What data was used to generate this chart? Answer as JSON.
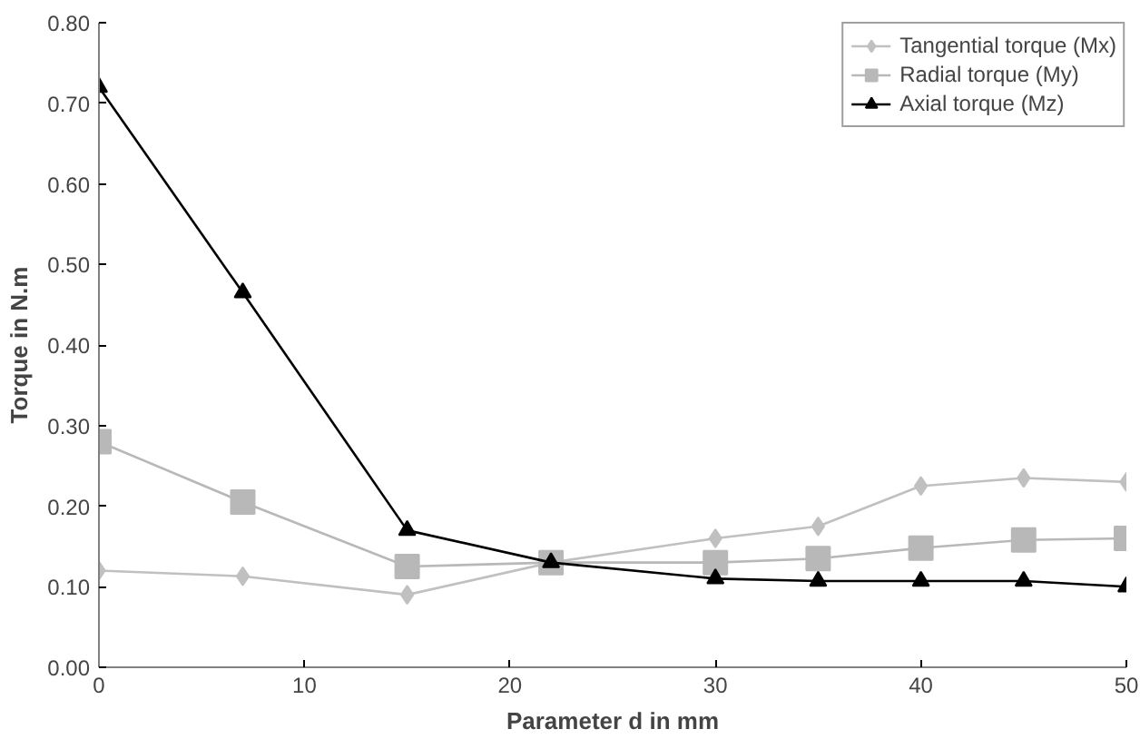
{
  "chart_data": {
    "type": "line",
    "xlabel": "Parameter d in mm",
    "ylabel": "Torque in N.m",
    "x": [
      0,
      7,
      15,
      22,
      30,
      35,
      40,
      45,
      50
    ],
    "series": [
      {
        "name": "Tangential torque (Mx)",
        "color": "#c0c0c0",
        "marker": "diamond",
        "values": [
          0.12,
          0.113,
          0.09,
          0.13,
          0.16,
          0.175,
          0.225,
          0.235,
          0.23
        ]
      },
      {
        "name": "Radial torque (My)",
        "color": "#b8b8b8",
        "marker": "square",
        "values": [
          0.28,
          0.205,
          0.125,
          0.13,
          0.13,
          0.135,
          0.148,
          0.158,
          0.16
        ]
      },
      {
        "name": "Axial torque (Mz)",
        "color": "#000000",
        "marker": "triangle",
        "values": [
          0.72,
          0.465,
          0.17,
          0.13,
          0.11,
          0.107,
          0.107,
          0.107,
          0.1
        ]
      }
    ],
    "xlim": [
      0,
      50
    ],
    "xticks": [
      0,
      10,
      20,
      30,
      40,
      50
    ],
    "ylim": [
      0,
      0.8
    ],
    "yticks": [
      {
        "value": 0,
        "label": "0.00"
      },
      {
        "value": 0.1,
        "label": "0.10"
      },
      {
        "value": 0.2,
        "label": "0.20"
      },
      {
        "value": 0.3,
        "label": "0.30"
      },
      {
        "value": 0.4,
        "label": "0.40"
      },
      {
        "value": 0.5,
        "label": "0.50"
      },
      {
        "value": 0.6,
        "label": "0.60"
      },
      {
        "value": 0.7,
        "label": "0.70"
      },
      {
        "value": 0.8,
        "label": "0.80"
      }
    ],
    "grid": false,
    "legend": "top right"
  }
}
